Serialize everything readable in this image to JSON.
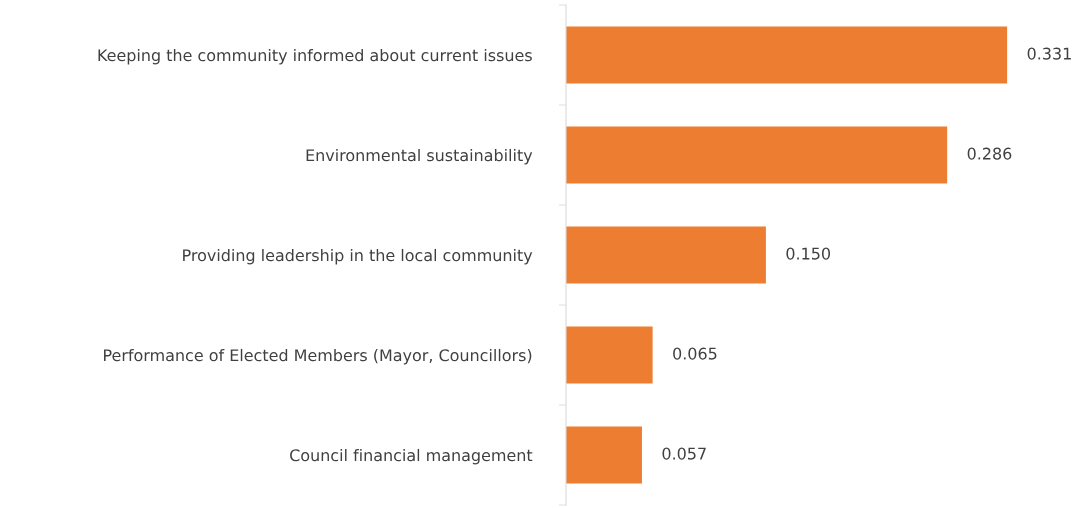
{
  "chart_data": {
    "type": "bar",
    "orientation": "horizontal",
    "categories": [
      "Keeping the community informed about current issues",
      "Environmental sustainability",
      "Providing leadership in the local community",
      "Performance of Elected Members (Mayor, Councillors)",
      "Council financial management"
    ],
    "values": [
      0.331,
      0.286,
      0.15,
      0.065,
      0.057
    ],
    "value_labels": [
      "0.331",
      "0.286",
      "0.150",
      "0.065",
      "0.057"
    ],
    "color": "#ed7d31",
    "grid": false,
    "legend": false
  }
}
